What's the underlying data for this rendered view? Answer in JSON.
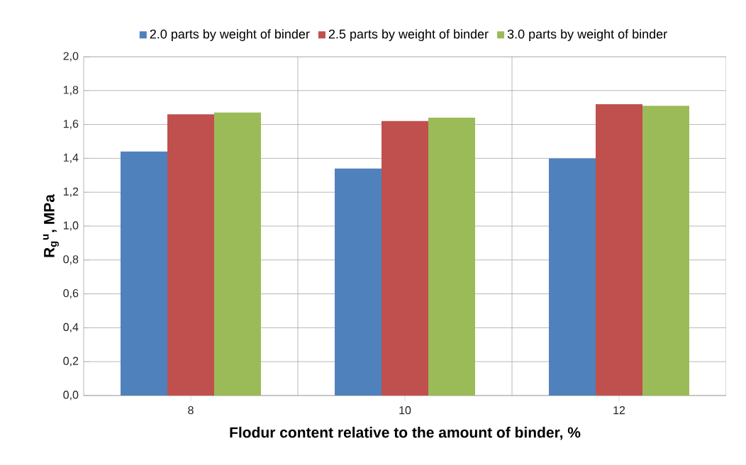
{
  "chart_data": {
    "type": "bar",
    "xlabel": "Flodur content relative to the amount of binder, %",
    "ylabel": "R$_{g}$$^{u}$, MPa",
    "categories": [
      "8",
      "10",
      "12"
    ],
    "series": [
      {
        "name": "2.0 parts by weight of binder",
        "color": "#4f81bd",
        "values": [
          1.44,
          1.34,
          1.4
        ]
      },
      {
        "name": "2.5 parts by weight of binder",
        "color": "#c0504d",
        "values": [
          1.66,
          1.62,
          1.72
        ]
      },
      {
        "name": "3.0 parts by weight of binder",
        "color": "#9bbb59",
        "values": [
          1.67,
          1.64,
          1.71
        ]
      }
    ],
    "ylim": [
      0,
      2
    ],
    "yticks": [
      {
        "value": 0,
        "label": "0,0"
      },
      {
        "value": 0.2,
        "label": "0,2"
      },
      {
        "value": 0.4,
        "label": "0,4"
      },
      {
        "value": 0.6,
        "label": "0,6"
      },
      {
        "value": 0.8,
        "label": "0,8"
      },
      {
        "value": 1.0,
        "label": "1,0"
      },
      {
        "value": 1.2,
        "label": "1,2"
      },
      {
        "value": 1.4,
        "label": "1,4"
      },
      {
        "value": 1.6,
        "label": "1,6"
      },
      {
        "value": 1.8,
        "label": "1,8"
      },
      {
        "value": 2.0,
        "label": "2,0"
      }
    ],
    "grid": true,
    "legend": "top"
  }
}
